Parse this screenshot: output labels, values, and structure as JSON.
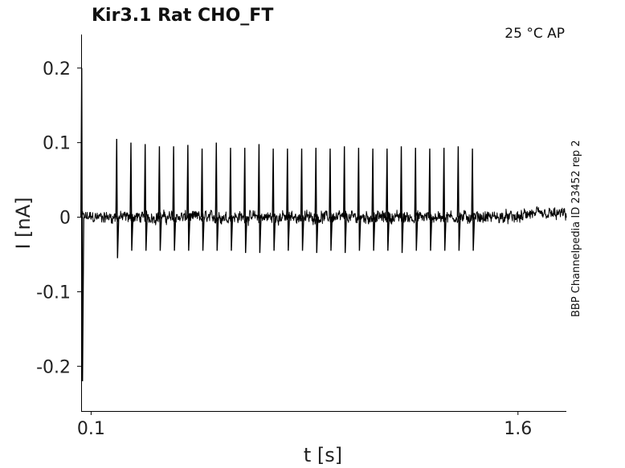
{
  "chart_data": {
    "type": "line",
    "title": "Kir3.1  Rat  CHO_FT",
    "conditions": "25 °C  AP",
    "side_label": "BBP Channelpedia ID 23452 rep 2",
    "xlabel": "t [s]",
    "ylabel": "I [nA]",
    "xlim": [
      0.065,
      1.77
    ],
    "ylim": [
      -0.26,
      0.245
    ],
    "x_ticks": [
      {
        "value": 0.1,
        "label": "0.1"
      },
      {
        "value": 1.6,
        "label": "1.6"
      }
    ],
    "y_ticks": [
      {
        "value": 0.2,
        "label": "0.2"
      },
      {
        "value": 0.1,
        "label": "0.1"
      },
      {
        "value": 0,
        "label": "0"
      },
      {
        "value": -0.1,
        "label": "-0.1"
      },
      {
        "value": -0.2,
        "label": "-0.2"
      }
    ],
    "grid": false,
    "series": [
      {
        "color": "#000000",
        "baseline_noise_nA": 0.009,
        "onset_artifact": {
          "t": 0.067,
          "peak": 0.2,
          "trough": -0.22
        },
        "spikes": [
          {
            "t": 0.19,
            "peak": 0.105,
            "trough": -0.055
          },
          {
            "t": 0.24,
            "peak": 0.1,
            "trough": -0.045
          },
          {
            "t": 0.29,
            "peak": 0.098,
            "trough": -0.045
          },
          {
            "t": 0.34,
            "peak": 0.095,
            "trough": -0.045
          },
          {
            "t": 0.39,
            "peak": 0.095,
            "trough": -0.045
          },
          {
            "t": 0.44,
            "peak": 0.097,
            "trough": -0.045
          },
          {
            "t": 0.49,
            "peak": 0.092,
            "trough": -0.045
          },
          {
            "t": 0.54,
            "peak": 0.1,
            "trough": -0.045
          },
          {
            "t": 0.59,
            "peak": 0.093,
            "trough": -0.045
          },
          {
            "t": 0.64,
            "peak": 0.093,
            "trough": -0.048
          },
          {
            "t": 0.69,
            "peak": 0.098,
            "trough": -0.048
          },
          {
            "t": 0.74,
            "peak": 0.092,
            "trough": -0.045
          },
          {
            "t": 0.79,
            "peak": 0.092,
            "trough": -0.045
          },
          {
            "t": 0.84,
            "peak": 0.092,
            "trough": -0.045
          },
          {
            "t": 0.89,
            "peak": 0.093,
            "trough": -0.048
          },
          {
            "t": 0.94,
            "peak": 0.092,
            "trough": -0.045
          },
          {
            "t": 0.99,
            "peak": 0.095,
            "trough": -0.048
          },
          {
            "t": 1.04,
            "peak": 0.093,
            "trough": -0.045
          },
          {
            "t": 1.09,
            "peak": 0.092,
            "trough": -0.045
          },
          {
            "t": 1.14,
            "peak": 0.092,
            "trough": -0.045
          },
          {
            "t": 1.19,
            "peak": 0.095,
            "trough": -0.048
          },
          {
            "t": 1.24,
            "peak": 0.093,
            "trough": -0.045
          },
          {
            "t": 1.29,
            "peak": 0.092,
            "trough": -0.045
          },
          {
            "t": 1.34,
            "peak": 0.093,
            "trough": -0.045
          },
          {
            "t": 1.39,
            "peak": 0.095,
            "trough": -0.045
          },
          {
            "t": 1.44,
            "peak": 0.092,
            "trough": -0.045
          }
        ]
      }
    ]
  }
}
